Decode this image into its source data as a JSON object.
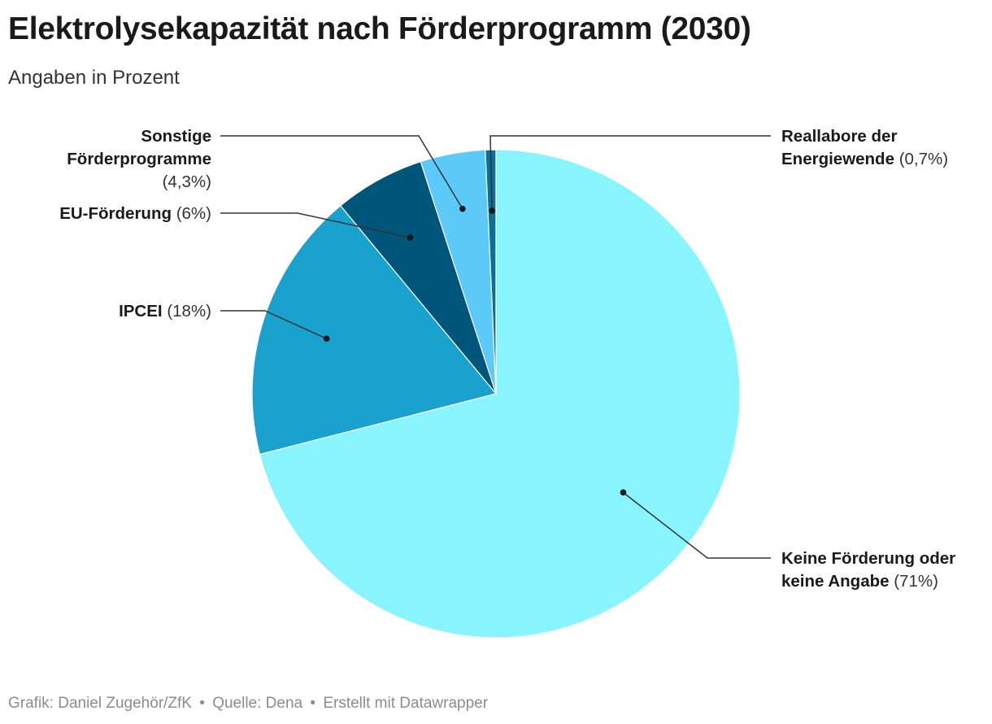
{
  "header": {
    "title": "Elektrolysekapazität nach Förderprogramm (2030)",
    "subtitle": "Angaben in Prozent"
  },
  "footer": {
    "credit": "Grafik: Daniel Zugehör/ZfK",
    "source": "Quelle: Dena",
    "tool": "Erstellt mit Datawrapper",
    "separator": "•"
  },
  "chart_data": {
    "type": "pie",
    "title": "Elektrolysekapazität nach Förderprogramm (2030)",
    "subtitle": "Angaben in Prozent",
    "start": "12 o'clock, clockwise",
    "slices": [
      {
        "name": "Keine Förderung oder keine Angabe",
        "value": 71,
        "label_value": "(71%)",
        "color": "#88f4fe"
      },
      {
        "name": "IPCEI",
        "value": 18,
        "label_value": "(18%)",
        "color": "#19a2ce"
      },
      {
        "name": "EU-Förderung",
        "value": 6,
        "label_value": "(6%)",
        "color": "#00557a"
      },
      {
        "name": "Sonstige Förderprogramme",
        "value": 4.3,
        "label_value": "(4,3%)",
        "color": "#5ccaf8"
      },
      {
        "name": "Reallabore der Energiewende",
        "value": 0.7,
        "label_value": "(0,7%)",
        "color": "#0a7099"
      }
    ]
  }
}
